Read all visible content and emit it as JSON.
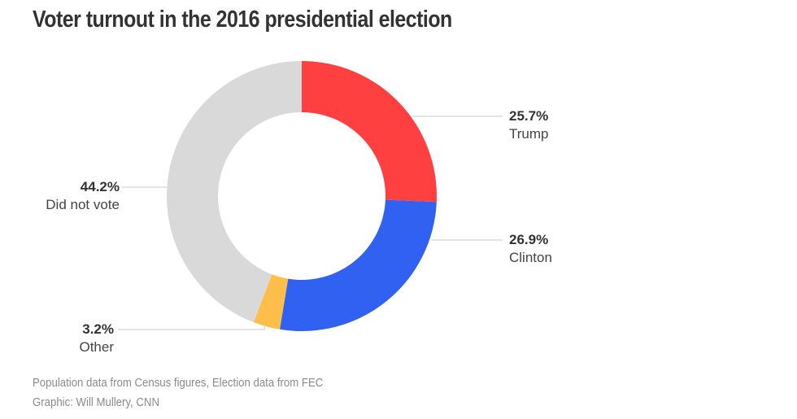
{
  "chart_data": {
    "type": "pie",
    "variant": "donut",
    "title": "Voter turnout in the 2016 presidential election",
    "slices": [
      {
        "label": "Trump",
        "value": 25.7,
        "display": "25.7%",
        "color": "#ff4040"
      },
      {
        "label": "Clinton",
        "value": 26.9,
        "display": "26.9%",
        "color": "#3061f0"
      },
      {
        "label": "Other",
        "value": 3.2,
        "display": "3.2%",
        "color": "#fdbe4a"
      },
      {
        "label": "Did not vote",
        "value": 44.2,
        "display": "44.2%",
        "color": "#d9d9d9"
      }
    ],
    "start_angle": "12 o'clock, clockwise"
  },
  "footer": {
    "source": "Population data from Census figures, Election data from FEC",
    "credit": "Graphic: Will Mullery, CNN"
  }
}
